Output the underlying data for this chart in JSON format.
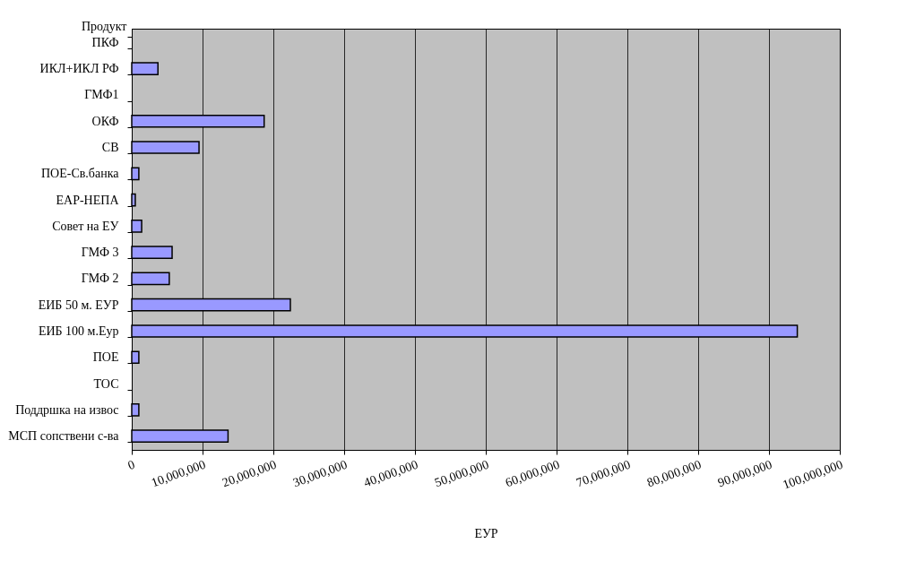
{
  "chart_data": {
    "type": "bar",
    "orientation": "horizontal",
    "ylabel": "Продукт",
    "xlabel": "ЕУР",
    "categories": [
      "ПКФ",
      "ИКЛ+ИКЛ РФ",
      "ГМФ1",
      "ОКФ",
      "СВ",
      "ПОЕ-Св.банка",
      "ЕАР-НЕПА",
      "Совет на ЕУ",
      "ГМФ 3",
      "ГМФ 2",
      "ЕИБ 50 м. ЕУР",
      "ЕИБ 100 м.Еур",
      "ПОЕ",
      "ТОС",
      "Поддршка на извос",
      "МСП сопствени с-ва"
    ],
    "values": [
      null,
      3700000,
      null,
      18700000,
      9500000,
      1000000,
      500000,
      1400000,
      5700000,
      5300000,
      22400000,
      94000000,
      1000000,
      null,
      1000000,
      13600000
    ],
    "color": "#9999ff",
    "xlim": [
      0,
      100000000
    ],
    "xticks": [
      0,
      {
        "value": 10000000,
        "label": "10,000,000"
      },
      {
        "value": 20000000,
        "label": "20,000,000"
      },
      {
        "value": 30000000,
        "label": "30,000,000"
      },
      {
        "value": 40000000,
        "label": "40,000,000"
      },
      {
        "value": 50000000,
        "label": "50,000,000"
      },
      {
        "value": 60000000,
        "label": "60,000,000"
      },
      {
        "value": 70000000,
        "label": "70,000,000"
      },
      {
        "value": 80000000,
        "label": "80,000,000"
      },
      {
        "value": 90000000,
        "label": "90,000,000"
      },
      {
        "value": 100000000,
        "label": "100,000,000"
      }
    ],
    "grid": "x"
  }
}
